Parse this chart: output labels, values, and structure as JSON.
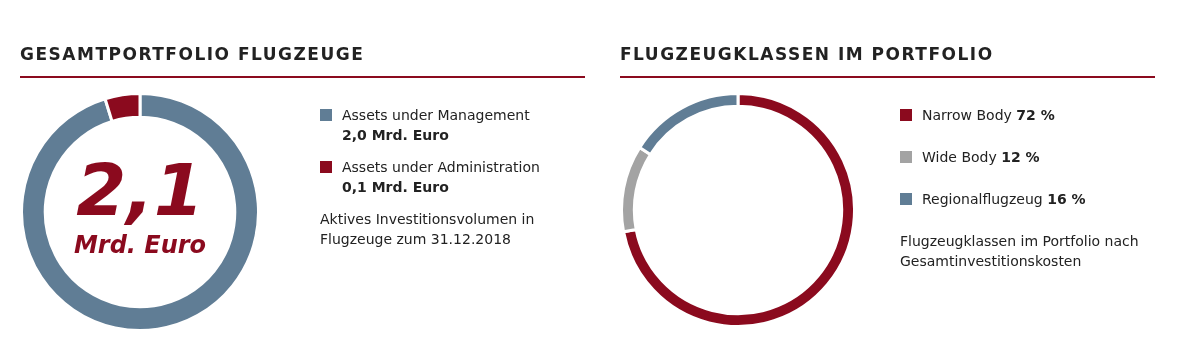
{
  "chart_data": [
    {
      "type": "donut",
      "title": "GESAMTPORTFOLIO FLUGZEUGE",
      "categories": [
        "Assets under Management",
        "Assets under Administration"
      ],
      "values": [
        2.0,
        0.1
      ],
      "value_labels": [
        "2,0 Mrd. Euro",
        "0,1 Mrd. Euro"
      ],
      "colors": [
        "#607d95",
        "#8b0a1e"
      ],
      "legend": "right",
      "annotations": [
        "2,1",
        "Mrd. Euro",
        "Aktives Investitionsvolumen in Flugzeuge zum 31.12.2018"
      ]
    },
    {
      "type": "donut",
      "title": "FLUGZEUGKLASSEN IM PORTFOLIO",
      "categories": [
        "Narrow Body",
        "Wide Body",
        "Regionalflugzeug"
      ],
      "values": [
        72,
        12,
        16
      ],
      "value_labels": [
        "72 %",
        "12 %",
        "16 %"
      ],
      "colors": [
        "#8b0a1e",
        "#a3a3a3",
        "#607d95"
      ],
      "legend": "right",
      "annotations": [
        "Flugzeugklassen im Portfolio nach Gesamtinvestitionskosten"
      ]
    }
  ]
}
